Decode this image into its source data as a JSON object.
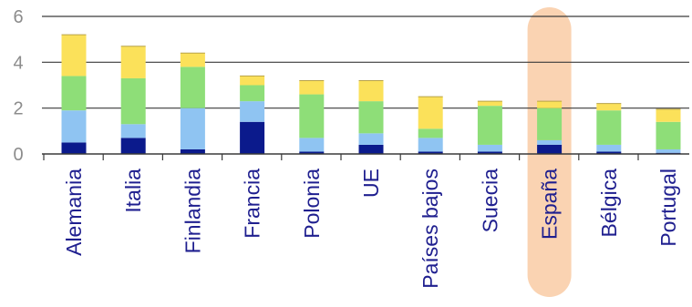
{
  "chart_data": {
    "type": "bar",
    "stacked": true,
    "categories": [
      "Alemania",
      "Italia",
      "Finlandia",
      "Francia",
      "Polonia",
      "UE",
      "Países bajos",
      "Suecia",
      "España",
      "Bélgica",
      "Portugal"
    ],
    "series": [
      {
        "color": "#0b1a8c",
        "values": [
          0.5,
          0.7,
          0.2,
          1.4,
          0.1,
          0.4,
          0.1,
          0.1,
          0.4,
          0.1,
          0.05
        ]
      },
      {
        "color": "#8fc4f2",
        "values": [
          1.4,
          0.6,
          1.8,
          0.9,
          0.6,
          0.5,
          0.6,
          0.3,
          0.2,
          0.3,
          0.15
        ]
      },
      {
        "color": "#8ede78",
        "values": [
          1.5,
          2.0,
          1.8,
          0.7,
          1.9,
          1.4,
          0.4,
          1.7,
          1.4,
          1.5,
          1.2
        ]
      },
      {
        "color": "#fbe15a",
        "values": [
          1.8,
          1.4,
          0.6,
          0.4,
          0.6,
          0.9,
          1.4,
          0.2,
          0.3,
          0.3,
          0.55
        ]
      }
    ],
    "ylim": [
      0,
      6
    ],
    "yticks": [
      0,
      2,
      4,
      6
    ],
    "grid": true,
    "highlight": {
      "category": "España",
      "color": "#fad3b2"
    },
    "title": "",
    "xlabel": "",
    "ylabel": ""
  }
}
